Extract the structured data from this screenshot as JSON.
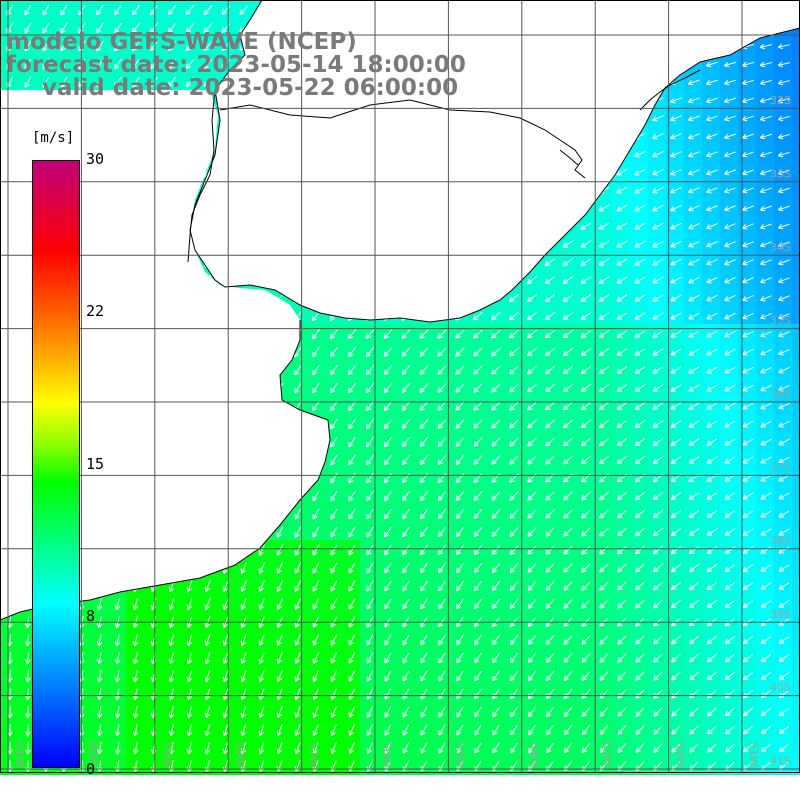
{
  "title": {
    "line1": "modelo GEFS-WAVE (NCEP)",
    "line2": "forecast date: 2023-05-14 18:00:00",
    "line3": "valid date: 2023-05-22 06:00:00"
  },
  "colorbar": {
    "unit": "[m/s]",
    "ticks": [
      "30",
      "22",
      "15",
      "8",
      "0"
    ],
    "tick_values": [
      30,
      22,
      15,
      8,
      0
    ],
    "min": 0,
    "max": 30
  },
  "lat_labels": [
    "32S",
    "33S",
    "34S",
    "35S",
    "36S",
    "37S",
    "38S",
    "39S",
    "40S",
    "41S"
  ],
  "lon_labels": [
    "61W",
    "60W",
    "59W",
    "58W",
    "57W",
    "56W",
    "55W",
    "54W",
    "53W",
    "52W",
    "51W"
  ],
  "map": {
    "lon_range": [
      -61.5,
      -50.5
    ],
    "lat_range": [
      -41.5,
      -30.5
    ],
    "variable": "wind speed and direction",
    "colors": {
      "land": "#ffffff",
      "coast": "#000000",
      "grid": "#555555",
      "arrow": "#ffffff",
      "label": "#a0a0a0"
    }
  }
}
